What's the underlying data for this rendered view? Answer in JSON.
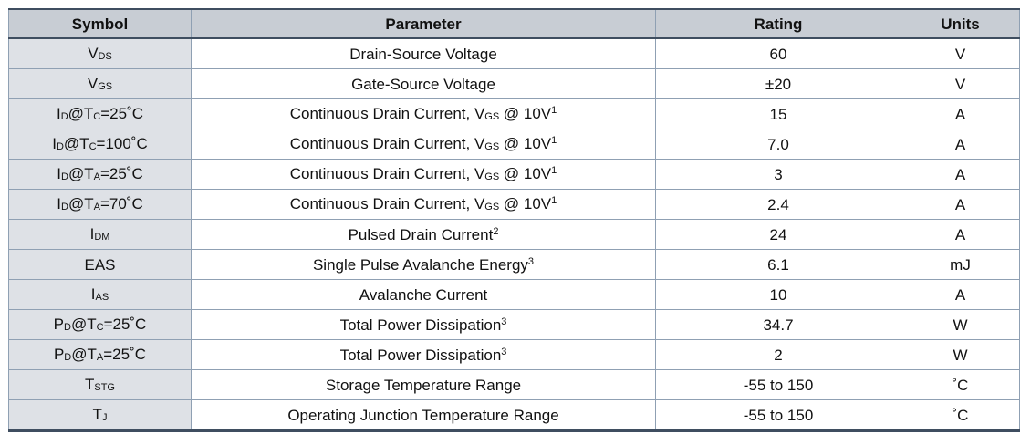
{
  "header": {
    "symbol": "Symbol",
    "parameter": "Parameter",
    "rating": "Rating",
    "units": "Units"
  },
  "rows": [
    {
      "sym_main": "V",
      "sym_sub": "DS",
      "sym_rest": "",
      "p_main": "Drain-Source Voltage",
      "p_sub": "",
      "p_after": "",
      "p_sup": "",
      "rating": "60",
      "unit": "V"
    },
    {
      "sym_main": "V",
      "sym_sub": "GS",
      "sym_rest": "",
      "p_main": "Gate-Source Voltage",
      "p_sub": "",
      "p_after": "",
      "p_sup": "",
      "rating": "±20",
      "unit": "V"
    },
    {
      "sym_main": "I",
      "sym_sub": "D",
      "sym_rest": "@T",
      "sym_sub2": "C",
      "sym_tail": "=25˚C",
      "p_main": "Continuous Drain Current, V",
      "p_sub": "GS",
      "p_after": " @ 10V",
      "p_sup": "1",
      "rating": "15",
      "unit": "A"
    },
    {
      "sym_main": "I",
      "sym_sub": "D",
      "sym_rest": "@T",
      "sym_sub2": "C",
      "sym_tail": "=100˚C",
      "p_main": "Continuous Drain Current, V",
      "p_sub": "GS",
      "p_after": " @ 10V",
      "p_sup": "1",
      "rating": "7.0",
      "unit": "A"
    },
    {
      "sym_main": "I",
      "sym_sub": "D",
      "sym_rest": "@T",
      "sym_sub2": "A",
      "sym_tail": "=25˚C",
      "p_main": "Continuous Drain Current, V",
      "p_sub": "GS",
      "p_after": " @ 10V",
      "p_sup": "1",
      "rating": "3",
      "unit": "A"
    },
    {
      "sym_main": "I",
      "sym_sub": "D",
      "sym_rest": "@T",
      "sym_sub2": "A",
      "sym_tail": "=70˚C",
      "p_main": "Continuous Drain Current, V",
      "p_sub": "GS",
      "p_after": " @ 10V",
      "p_sup": "1",
      "rating": "2.4",
      "unit": "A"
    },
    {
      "sym_main": "I",
      "sym_sub": "DM",
      "sym_rest": "",
      "p_main": "Pulsed Drain Current",
      "p_sub": "",
      "p_after": "",
      "p_sup": "2",
      "rating": "24",
      "unit": "A"
    },
    {
      "sym_main": "EAS",
      "sym_sub": "",
      "sym_rest": "",
      "p_main": "Single Pulse Avalanche Energy",
      "p_sub": "",
      "p_after": "",
      "p_sup": "3",
      "rating": "6.1",
      "unit": "mJ"
    },
    {
      "sym_main": "I",
      "sym_sub": "AS",
      "sym_rest": "",
      "p_main": "Avalanche Current",
      "p_sub": "",
      "p_after": "",
      "p_sup": "",
      "rating": "10",
      "unit": "A"
    },
    {
      "sym_main": "P",
      "sym_sub": "D",
      "sym_rest": "@T",
      "sym_sub2": "C",
      "sym_tail": "=25˚C",
      "p_main": "Total Power Dissipation",
      "p_sub": "",
      "p_after": "",
      "p_sup": "3",
      "rating": "34.7",
      "unit": "W"
    },
    {
      "sym_main": "P",
      "sym_sub": "D",
      "sym_rest": "@T",
      "sym_sub2": "A",
      "sym_tail": "=25˚C",
      "p_main": "Total Power Dissipation",
      "p_sub": "",
      "p_after": "",
      "p_sup": "3",
      "rating": "2",
      "unit": "W"
    },
    {
      "sym_main": "T",
      "sym_sub": "STG",
      "sym_rest": "",
      "p_main": "Storage Temperature Range",
      "p_sub": "",
      "p_after": "",
      "p_sup": "",
      "rating": "-55 to 150",
      "unit": "˚C"
    },
    {
      "sym_main": "T",
      "sym_sub": "J",
      "sym_rest": "",
      "p_main": "Operating Junction Temperature Range",
      "p_sub": "",
      "p_after": "",
      "p_sup": "",
      "rating": "-55 to 150",
      "unit": "˚C"
    }
  ]
}
